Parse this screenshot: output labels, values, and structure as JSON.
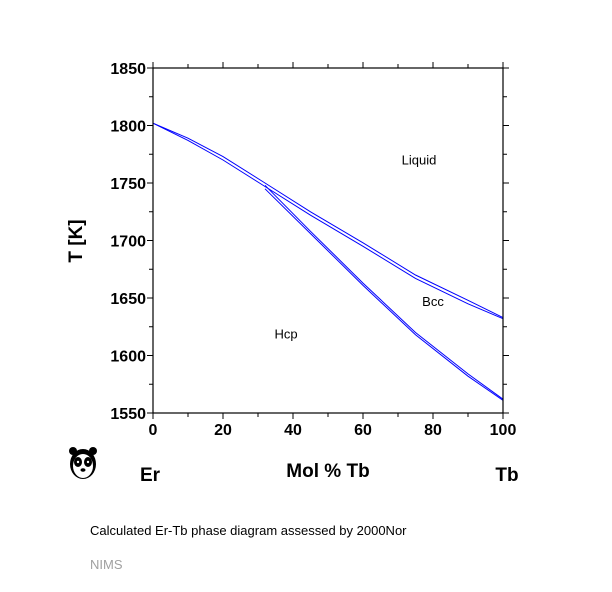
{
  "chart_data": {
    "type": "line",
    "title": "",
    "xlabel": "Mol % Tb",
    "ylabel": "T [K]",
    "xlim": [
      0,
      100
    ],
    "ylim": [
      1550,
      1850
    ],
    "xticks": [
      0,
      20,
      40,
      60,
      80,
      100
    ],
    "yticks": [
      1550,
      1600,
      1650,
      1700,
      1750,
      1800,
      1850
    ],
    "x_minor_step": 10,
    "y_minor_step": 25,
    "element_left": "Er",
    "element_right": "Tb",
    "line_color": "#0000ff",
    "series": [
      {
        "x": [
          0,
          10,
          20,
          32,
          45,
          60,
          75,
          90,
          100
        ],
        "y": [
          1802,
          1789,
          1773,
          1750,
          1725,
          1698,
          1670,
          1648,
          1633
        ]
      },
      {
        "x": [
          0,
          10,
          20,
          32,
          45,
          60,
          75,
          90,
          100
        ],
        "y": [
          1802,
          1787,
          1770,
          1747,
          1722,
          1695,
          1667,
          1645,
          1632
        ]
      },
      {
        "x": [
          32,
          45,
          60,
          75,
          90,
          100
        ],
        "y": [
          1748,
          1708,
          1663,
          1620,
          1584,
          1562
        ]
      },
      {
        "x": [
          32,
          45,
          60,
          75,
          90,
          100
        ],
        "y": [
          1745,
          1706,
          1661,
          1618,
          1582,
          1561
        ]
      }
    ],
    "annotations": [
      {
        "text": "Liquid",
        "x": 76,
        "y": 1766
      },
      {
        "text": "Bcc",
        "x": 80,
        "y": 1643
      },
      {
        "text": "Hcp",
        "x": 38,
        "y": 1615
      }
    ]
  },
  "caption": "Calculated Er-Tb phase diagram assessed by 2000Nor",
  "source": "NIMS",
  "logo_icon": "panda-icon"
}
